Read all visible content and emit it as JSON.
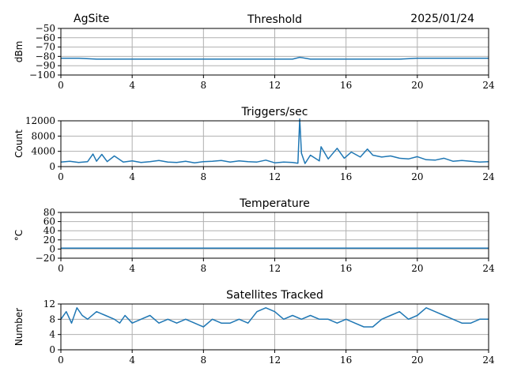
{
  "header": {
    "site": "AgSite",
    "date": "2025/01/24"
  },
  "series_color": "#1f77b4",
  "chart_data": [
    {
      "type": "line",
      "title": "Threshold",
      "ylabel": "dBm",
      "xlim": [
        0,
        24
      ],
      "ylim": [
        -100,
        -50
      ],
      "xticks": [
        "0",
        "4",
        "8",
        "12",
        "16",
        "20",
        "24"
      ],
      "yticks": [
        "−100",
        "−90",
        "−80",
        "−70",
        "−60",
        "−50"
      ],
      "grid": true,
      "x": [
        0,
        1,
        2,
        3,
        4,
        5,
        6,
        7,
        8,
        9,
        10,
        11,
        12,
        13,
        13.4,
        14,
        15,
        16,
        17,
        18,
        19,
        20,
        21,
        22,
        23,
        24
      ],
      "values": [
        -82,
        -82,
        -83,
        -83,
        -83,
        -83,
        -83,
        -83,
        -83,
        -83,
        -83,
        -83,
        -83,
        -83,
        -81,
        -83,
        -83,
        -83,
        -83,
        -83,
        -83,
        -82,
        -82,
        -82,
        -82,
        -82
      ]
    },
    {
      "type": "line",
      "title": "Triggers/sec",
      "ylabel": "Count",
      "xlim": [
        0,
        24
      ],
      "ylim": [
        0,
        12000
      ],
      "xticks": [
        "0",
        "4",
        "8",
        "12",
        "16",
        "20",
        "24"
      ],
      "yticks": [
        "0",
        "4000",
        "8000",
        "12000"
      ],
      "grid": true,
      "x": [
        0,
        0.5,
        1,
        1.5,
        1.8,
        2,
        2.3,
        2.6,
        3,
        3.5,
        4,
        4.5,
        5,
        5.5,
        6,
        6.5,
        7,
        7.5,
        8,
        8.5,
        9,
        9.5,
        10,
        10.5,
        11,
        11.5,
        12,
        12.5,
        13,
        13.3,
        13.4,
        13.5,
        13.7,
        14,
        14.5,
        14.6,
        15,
        15.5,
        15.9,
        16.3,
        16.8,
        17.2,
        17.5,
        18,
        18.5,
        19,
        19.5,
        20,
        20.5,
        21,
        21.5,
        22,
        22.5,
        23,
        23.5,
        24
      ],
      "values": [
        1200,
        1400,
        1100,
        1300,
        3300,
        1400,
        3200,
        1300,
        2800,
        1200,
        1500,
        1100,
        1300,
        1600,
        1200,
        1100,
        1400,
        1000,
        1300,
        1400,
        1600,
        1200,
        1500,
        1300,
        1200,
        1700,
        1000,
        1200,
        1100,
        900,
        12500,
        3500,
        800,
        3000,
        1500,
        5200,
        2000,
        4800,
        2200,
        3800,
        2500,
        4600,
        3000,
        2500,
        2800,
        2200,
        2000,
        2600,
        1800,
        1700,
        2200,
        1400,
        1600,
        1400,
        1200,
        1300
      ]
    },
    {
      "type": "line",
      "title": "Temperature",
      "ylabel": "°C",
      "xlim": [
        0,
        24
      ],
      "ylim": [
        -20,
        80
      ],
      "xticks": [
        "0",
        "4",
        "8",
        "12",
        "16",
        "20",
        "24"
      ],
      "yticks": [
        "−20",
        "0",
        "20",
        "40",
        "60",
        "80"
      ],
      "grid": true,
      "x": [
        0,
        24
      ],
      "values": [
        2,
        2
      ]
    },
    {
      "type": "line",
      "title": "Satellites Tracked",
      "ylabel": "Number",
      "xlim": [
        0,
        24
      ],
      "ylim": [
        0,
        12
      ],
      "xticks": [
        "0",
        "4",
        "8",
        "12",
        "16",
        "20",
        "24"
      ],
      "yticks": [
        "0",
        "4",
        "8",
        "12"
      ],
      "grid": true,
      "x": [
        0,
        0.3,
        0.6,
        0.9,
        1.2,
        1.5,
        2,
        2.5,
        3,
        3.3,
        3.6,
        4,
        4.5,
        5,
        5.5,
        6,
        6.5,
        7,
        7.5,
        8,
        8.5,
        9,
        9.5,
        10,
        10.5,
        11,
        11.5,
        12,
        12.5,
        13,
        13.5,
        14,
        14.5,
        15,
        15.5,
        16,
        16.5,
        17,
        17.5,
        18,
        18.5,
        19,
        19.5,
        20,
        20.5,
        21,
        21.5,
        22,
        22.5,
        23,
        23.5,
        24
      ],
      "values": [
        8,
        10,
        7,
        11,
        9,
        8,
        10,
        9,
        8,
        7,
        9,
        7,
        8,
        9,
        7,
        8,
        7,
        8,
        7,
        6,
        8,
        7,
        7,
        8,
        7,
        10,
        11,
        10,
        8,
        9,
        8,
        9,
        8,
        8,
        7,
        8,
        7,
        6,
        6,
        8,
        9,
        10,
        8,
        9,
        11,
        10,
        9,
        8,
        7,
        7,
        8,
        8
      ]
    }
  ]
}
